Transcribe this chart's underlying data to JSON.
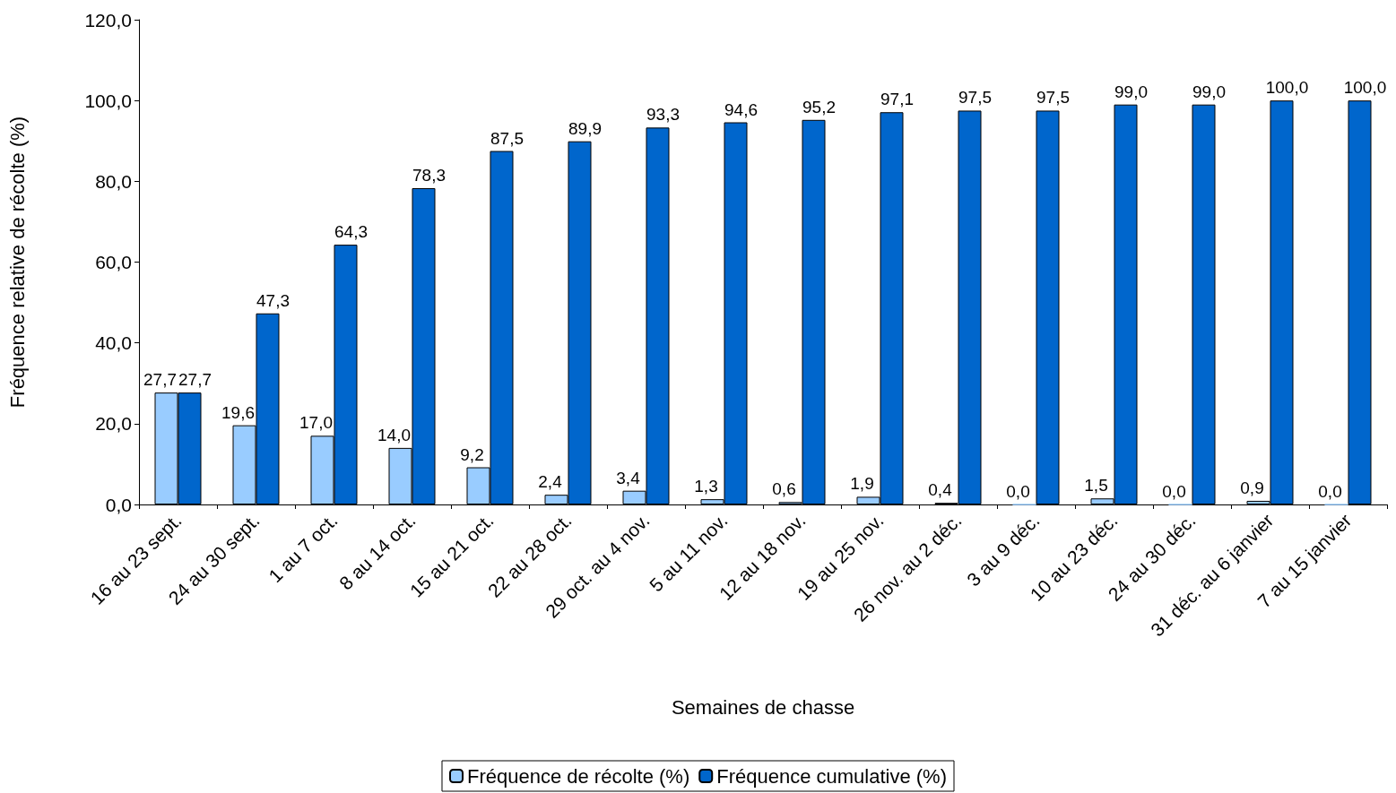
{
  "chart_data": {
    "type": "bar",
    "xlabel": "Semaines de chasse",
    "ylabel": "Fréquence relative de récolte (%)",
    "categories": [
      "16 au 23 sept.",
      "24 au 30 sept.",
      "1 au 7 oct.",
      "8 au 14 oct.",
      "15 au 21 oct.",
      "22 au 28 oct.",
      "29 oct. au 4 nov.",
      "5 au 11 nov.",
      "12 au 18 nov.",
      "19 au 25 nov.",
      "26 nov. au 2 déc.",
      "3 au 9 déc.",
      "10 au 23 déc.",
      "24 au 30 déc.",
      "31 déc. au 6 janvier",
      "7 au 15 janvier"
    ],
    "series": [
      {
        "name": "Fréquence de récolte (%)",
        "color": "#99ccff",
        "values": [
          27.7,
          19.6,
          17.0,
          14.0,
          9.2,
          2.4,
          3.4,
          1.3,
          0.6,
          1.9,
          0.4,
          0.0,
          1.5,
          0.0,
          0.9,
          0.0
        ],
        "value_labels": [
          "27,7",
          "19,6",
          "17,0",
          "14,0",
          "9,2",
          "2,4",
          "3,4",
          "1,3",
          "0,6",
          "1,9",
          "0,4",
          "0,0",
          "1,5",
          "0,0",
          "0,9",
          "0,0"
        ]
      },
      {
        "name": "Fréquence cumulative (%)",
        "color": "#0066cc",
        "values": [
          27.7,
          47.3,
          64.3,
          78.3,
          87.5,
          89.9,
          93.3,
          94.6,
          95.2,
          97.1,
          97.5,
          97.5,
          99.0,
          99.0,
          100.0,
          100.0
        ],
        "value_labels": [
          "27,7",
          "47,3",
          "64,3",
          "78,3",
          "87,5",
          "89,9",
          "93,3",
          "94,6",
          "95,2",
          "97,1",
          "97,5",
          "97,5",
          "99,0",
          "99,0",
          "100,0",
          "100,0"
        ]
      }
    ],
    "ylim": [
      0,
      120
    ],
    "yticks": [
      {
        "value": 0,
        "label": "0,0"
      },
      {
        "value": 20,
        "label": "20,0"
      },
      {
        "value": 40,
        "label": "40,0"
      },
      {
        "value": 60,
        "label": "60,0"
      },
      {
        "value": 80,
        "label": "80,0"
      },
      {
        "value": 100,
        "label": "100,0"
      },
      {
        "value": 120,
        "label": "120,0"
      }
    ],
    "grid": false,
    "legend": "bottom"
  }
}
